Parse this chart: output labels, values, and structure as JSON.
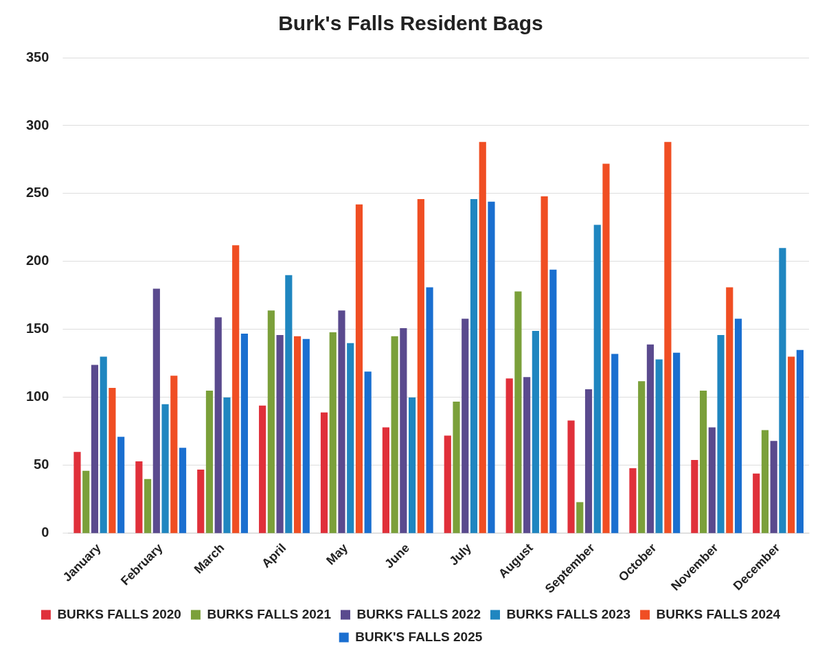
{
  "chart_data": {
    "type": "bar",
    "title": "Burk's Falls Resident Bags",
    "categories": [
      "January",
      "February",
      "March",
      "April",
      "May",
      "June",
      "July",
      "August",
      "September",
      "October",
      "November",
      "December"
    ],
    "series": [
      {
        "name": "BURKS FALLS 2020",
        "color": "#e0303a",
        "values": [
          60,
          53,
          47,
          94,
          89,
          78,
          72,
          114,
          83,
          48,
          54,
          44
        ]
      },
      {
        "name": "BURKS FALLS 2021",
        "color": "#7ba03a",
        "values": [
          46,
          40,
          105,
          164,
          148,
          145,
          97,
          178,
          23,
          112,
          105,
          76
        ]
      },
      {
        "name": "BURKS FALLS 2022",
        "color": "#5a4a8e",
        "values": [
          124,
          180,
          159,
          146,
          164,
          151,
          158,
          115,
          106,
          139,
          78,
          68
        ]
      },
      {
        "name": "BURKS FALLS 2023",
        "color": "#1f86c0",
        "values": [
          130,
          95,
          100,
          190,
          140,
          100,
          246,
          149,
          227,
          128,
          146,
          210
        ]
      },
      {
        "name": "BURKS FALLS 2024",
        "color": "#f04e23",
        "values": [
          107,
          116,
          212,
          145,
          242,
          246,
          288,
          248,
          272,
          288,
          181,
          130
        ]
      },
      {
        "name": "BURK'S FALLS 2025",
        "color": "#1a6fd0",
        "values": [
          71,
          63,
          147,
          143,
          119,
          181,
          244,
          194,
          132,
          133,
          158,
          135
        ]
      }
    ],
    "ylim": [
      0,
      350
    ],
    "yticks": [
      0,
      50,
      100,
      150,
      200,
      250,
      300,
      350
    ],
    "grid": "y",
    "legend": "bottom"
  }
}
